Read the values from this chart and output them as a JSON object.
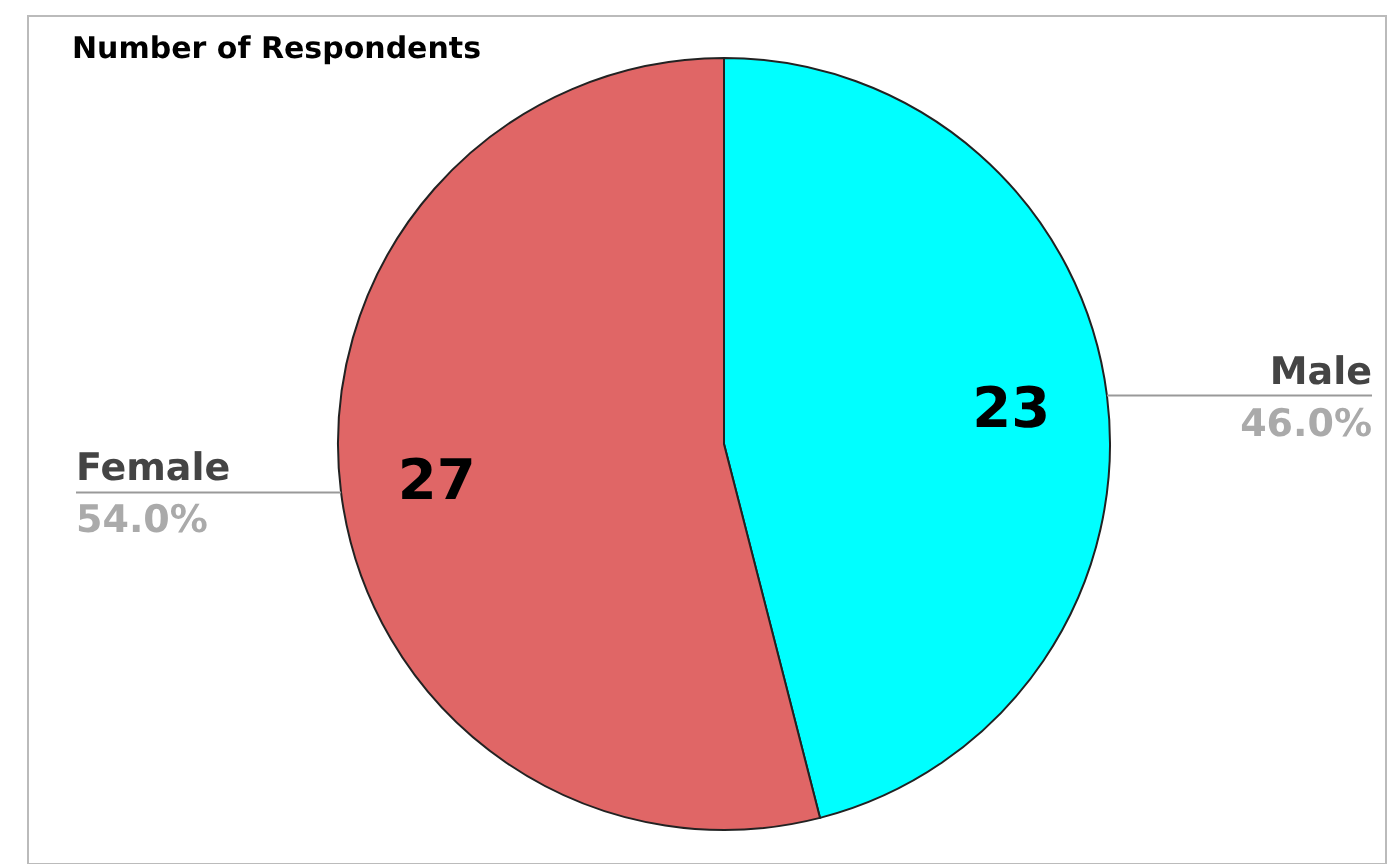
{
  "chart_data": {
    "type": "pie",
    "title": "Number of Respondents",
    "categories": [
      "Male",
      "Female"
    ],
    "values": [
      23,
      27
    ],
    "colors": [
      "#00ffff",
      "#e06666"
    ],
    "data_labels": true,
    "annotations": [
      {
        "text": "46.0%",
        "x": "Male"
      },
      {
        "text": "54.0%",
        "x": "Female"
      }
    ]
  }
}
